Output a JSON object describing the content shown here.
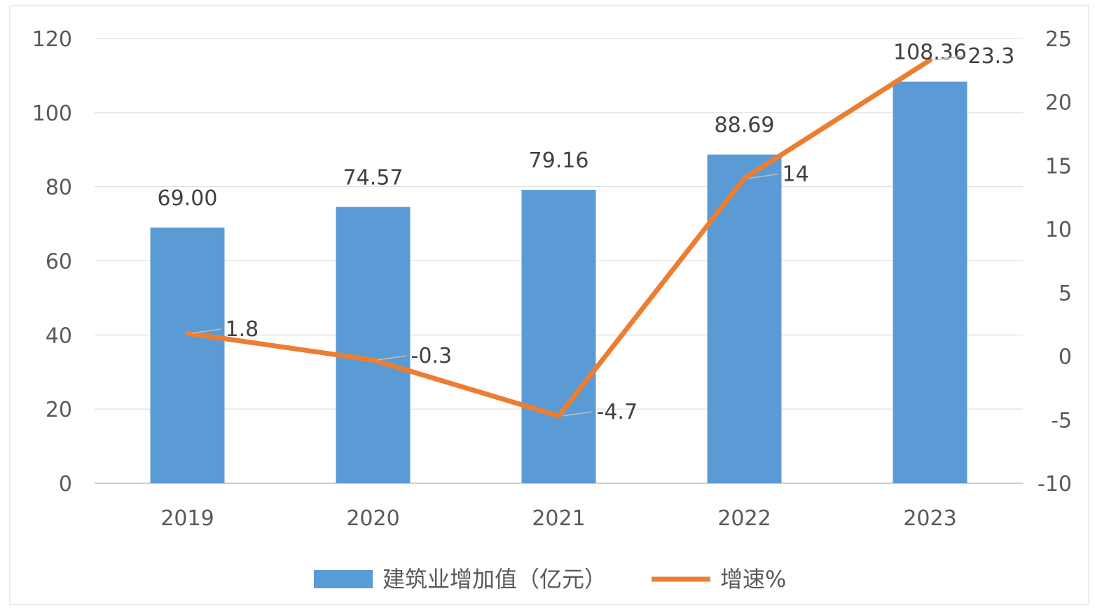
{
  "chart_data": {
    "type": "bar",
    "categories": [
      "2019",
      "2020",
      "2021",
      "2022",
      "2023"
    ],
    "series": [
      {
        "name": "建筑业增加值（亿元）",
        "type": "bar",
        "axis": "left",
        "color": "#5b9bd5",
        "values": [
          69.0,
          74.57,
          79.16,
          88.69,
          108.36
        ],
        "labels": [
          "69.00",
          "74.57",
          "79.16",
          "88.69",
          "108.36"
        ]
      },
      {
        "name": "增速%",
        "type": "line",
        "axis": "right",
        "color": "#ed7d31",
        "values": [
          1.8,
          -0.3,
          -4.7,
          14,
          23.3
        ],
        "labels": [
          "1.8",
          "-0.3",
          "-4.7",
          "14",
          "23.3"
        ]
      }
    ],
    "y_left": {
      "min": 0,
      "max": 120,
      "ticks": [
        "0",
        "20",
        "40",
        "60",
        "80",
        "100",
        "120"
      ]
    },
    "y_right": {
      "min": -10,
      "max": 25,
      "ticks": [
        "-10",
        "-5",
        "0",
        "5",
        "10",
        "15",
        "20",
        "25"
      ]
    },
    "grid": true,
    "legend": "bottom-center",
    "title": "",
    "xlabel": "",
    "ylabel": ""
  }
}
